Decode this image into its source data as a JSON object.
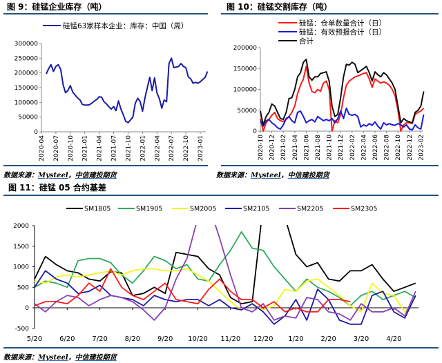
{
  "figures": {
    "fig9": {
      "title": "图 9：硅锰企业库存（吨）",
      "source_prefix": "数据来源：",
      "source_org": "Mysteel",
      "source_sep": "，",
      "source_firm": "中信建投期货"
    },
    "fig10": {
      "title": "图 10：硅锰交割库存（吨）",
      "source_prefix": "数据来源：",
      "source_org": "Mysteel",
      "source_sep": "，",
      "source_firm": "中信建投期货"
    },
    "fig11": {
      "title": "图 11：硅锰 05 合约基差",
      "source_prefix": "数据来源：",
      "source_org": "Mysteel",
      "source_sep": "，",
      "source_firm": "中信建投期货"
    }
  },
  "chart_data": [
    {
      "type": "line",
      "y_ticks": [
        "0",
        "50000",
        "100000",
        "150000",
        "200000",
        "250000",
        "300000"
      ],
      "ylim": [
        0,
        300000
      ],
      "x_tick_labels": [
        "2020-04",
        "2020-07",
        "2020-10",
        "2021-01",
        "2021-04",
        "2021-07",
        "2021-10",
        "2022-01",
        "2022-04",
        "2022-07",
        "2022-10",
        "2023-01"
      ],
      "legend": "top",
      "grid": false,
      "x": [
        "2020-05-01",
        "2020-05-16",
        "2020-06-01",
        "2020-06-16",
        "2020-07-01",
        "2020-07-16",
        "2020-08-01",
        "2020-08-16",
        "2020-09-01",
        "2020-09-16",
        "2020-10-01",
        "2020-10-16",
        "2020-11-01",
        "2020-11-16",
        "2020-12-01",
        "2020-12-16",
        "2021-01-01",
        "2021-01-16",
        "2021-02-01",
        "2021-02-16",
        "2021-03-01",
        "2021-03-16",
        "2021-04-01",
        "2021-04-16",
        "2021-05-01",
        "2021-05-16",
        "2021-06-01",
        "2021-06-16",
        "2021-07-01",
        "2021-07-16",
        "2021-08-01",
        "2021-08-16",
        "2021-09-01",
        "2021-09-16",
        "2021-10-01",
        "2021-10-16",
        "2021-11-01",
        "2021-11-16",
        "2021-12-01",
        "2021-12-16",
        "2022-01-01",
        "2022-01-16",
        "2022-02-01",
        "2022-02-16",
        "2022-03-01",
        "2022-03-16",
        "2022-04-01",
        "2022-04-16",
        "2022-05-01",
        "2022-05-16",
        "2022-06-01",
        "2022-06-16",
        "2022-07-01",
        "2022-07-16",
        "2022-08-01",
        "2022-08-16",
        "2022-09-01",
        "2022-09-16",
        "2022-10-01",
        "2022-10-16",
        "2022-11-01",
        "2022-11-16",
        "2022-12-01",
        "2022-12-16",
        "2023-01-01",
        "2023-01-16",
        "2023-02-01",
        "2023-02-16"
      ],
      "series": [
        {
          "name": "硅锰63家样本企业：库存：中国（周）",
          "color": "#1a1aa6",
          "values": [
            197000,
            215000,
            228000,
            205000,
            222000,
            228000,
            212000,
            160000,
            133000,
            140000,
            157000,
            135000,
            125000,
            115000,
            108000,
            93000,
            91000,
            91000,
            92000,
            98000,
            105000,
            110000,
            119000,
            118000,
            102000,
            95000,
            85000,
            77000,
            86000,
            72000,
            105000,
            78000,
            58000,
            36000,
            31000,
            40000,
            50000,
            97000,
            114000,
            103000,
            70000,
            115000,
            150000,
            185000,
            140000,
            183000,
            132000,
            112000,
            80000,
            108000,
            102000,
            232000,
            250000,
            218000,
            220000,
            222000,
            232000,
            222000,
            218000,
            187000,
            180000,
            165000,
            168000,
            165000,
            170000,
            178000,
            185000,
            205000
          ]
        }
      ]
    },
    {
      "type": "line",
      "y_ticks": [
        "0",
        "50000",
        "100000",
        "150000",
        "200000"
      ],
      "ylim": [
        0,
        200000
      ],
      "x_tick_labels": [
        "2020-10",
        "2020-12",
        "2021-02",
        "2021-04",
        "2021-06",
        "2021-08",
        "2021-10",
        "2021-12",
        "2022-02",
        "2022-04",
        "2022-06",
        "2022-08",
        "2022-10",
        "2022-12",
        "2023-02"
      ],
      "legend": "top",
      "grid": false,
      "x": [
        "2020-10-01",
        "2020-10-16",
        "2020-11-01",
        "2020-11-16",
        "2020-12-01",
        "2020-12-16",
        "2021-01-01",
        "2021-01-16",
        "2021-02-01",
        "2021-02-16",
        "2021-03-01",
        "2021-03-16",
        "2021-04-01",
        "2021-04-16",
        "2021-05-01",
        "2021-05-16",
        "2021-06-01",
        "2021-06-16",
        "2021-07-01",
        "2021-07-16",
        "2021-08-01",
        "2021-08-16",
        "2021-09-01",
        "2021-09-16",
        "2021-10-01",
        "2021-10-16",
        "2021-11-01",
        "2021-11-16",
        "2021-12-01",
        "2021-12-16",
        "2022-01-01",
        "2022-01-16",
        "2022-02-01",
        "2022-02-16",
        "2022-03-01",
        "2022-03-16",
        "2022-04-01",
        "2022-04-16",
        "2022-05-01",
        "2022-05-16",
        "2022-06-01",
        "2022-06-16",
        "2022-07-01",
        "2022-07-16",
        "2022-08-01",
        "2022-08-16",
        "2022-09-01",
        "2022-09-16",
        "2022-10-01",
        "2022-10-16",
        "2022-11-01",
        "2022-11-16",
        "2022-12-01",
        "2022-12-16",
        "2023-01-01",
        "2023-01-16",
        "2023-02-01",
        "2023-02-16"
      ],
      "series": [
        {
          "name": "硅锰：仓单数量合计（日）",
          "color": "#ff1a1a",
          "values": [
            30000,
            0,
            20000,
            28000,
            38000,
            45000,
            30000,
            25000,
            23000,
            28000,
            35000,
            45000,
            60000,
            90000,
            110000,
            125000,
            155000,
            115000,
            95000,
            92000,
            100000,
            95000,
            115000,
            120000,
            100000,
            0,
            25000,
            20000,
            40000,
            80000,
            110000,
            120000,
            125000,
            130000,
            132000,
            135000,
            138000,
            140000,
            125000,
            105000,
            125000,
            120000,
            115000,
            118000,
            115000,
            110000,
            100000,
            85000,
            50000,
            0,
            15000,
            20000,
            20000,
            18000,
            40000,
            45000,
            48000,
            55000
          ]
        },
        {
          "name": "硅锰：有效预报合计（日）",
          "color": "#1a1ad6",
          "values": [
            25000,
            12000,
            25000,
            28000,
            20000,
            15000,
            8000,
            5000,
            15000,
            30000,
            35000,
            25000,
            20000,
            45000,
            48000,
            35000,
            20000,
            25000,
            28000,
            22000,
            35000,
            30000,
            25000,
            28000,
            25000,
            30000,
            20000,
            30000,
            48000,
            30000,
            55000,
            40000,
            38000,
            40000,
            35000,
            10000,
            15000,
            12000,
            18000,
            14000,
            22000,
            12000,
            5000,
            20000,
            15000,
            18000,
            15000,
            14000,
            18000,
            15000,
            10000,
            15000,
            5000,
            3000,
            15000,
            8000,
            5000,
            40000
          ]
        },
        {
          "name": "合计",
          "color": "#111111",
          "values": [
            48000,
            15000,
            35000,
            45000,
            65000,
            60000,
            45000,
            30000,
            28000,
            45000,
            78000,
            80000,
            100000,
            130000,
            140000,
            165000,
            172000,
            130000,
            122000,
            130000,
            130000,
            138000,
            140000,
            142000,
            120000,
            60000,
            35000,
            40000,
            80000,
            130000,
            160000,
            158000,
            165000,
            160000,
            140000,
            145000,
            150000,
            155000,
            140000,
            120000,
            142000,
            135000,
            130000,
            140000,
            135000,
            125000,
            115000,
            100000,
            60000,
            20000,
            30000,
            25000,
            22000,
            20000,
            45000,
            50000,
            60000,
            95000
          ]
        }
      ]
    },
    {
      "type": "line",
      "y_ticks": [
        "-500",
        "0",
        "500",
        "1000",
        "1500",
        "2000"
      ],
      "ylim": [
        -500,
        2000
      ],
      "x_tick_labels": [
        "5/20",
        "6/20",
        "7/20",
        "8/20",
        "9/20",
        "10/20",
        "11/20",
        "12/20",
        "1/20",
        "2/20",
        "3/20",
        "4/20"
      ],
      "legend": "top",
      "grid": false,
      "x": [
        "5/20",
        "5/30",
        "6/10",
        "6/20",
        "6/30",
        "7/10",
        "7/20",
        "7/30",
        "8/10",
        "8/20",
        "8/30",
        "9/10",
        "9/20",
        "9/30",
        "10/10",
        "10/20",
        "10/30",
        "11/10",
        "11/20",
        "11/30",
        "12/10",
        "12/20",
        "12/30",
        "1/10",
        "1/20",
        "1/30",
        "2/10",
        "2/20",
        "2/28",
        "3/10",
        "3/20",
        "3/30",
        "4/10",
        "4/20",
        "4/30",
        "5/10"
      ],
      "series": [
        {
          "name": "SM1805",
          "color": "#000000",
          "values": [
            700,
            1250,
            1050,
            900,
            850,
            700,
            650,
            880,
            850,
            300,
            350,
            500,
            350,
            1350,
            1300,
            1250,
            950,
            800,
            250,
            100,
            150,
            2500,
            2200,
            2200,
            1300,
            1000,
            1100,
            700,
            650,
            900,
            900,
            1050,
            700,
            400,
            500,
            600
          ]
        },
        {
          "name": "SM1905",
          "color": "#2eaa5c",
          "values": [
            500,
            650,
            600,
            500,
            1150,
            1200,
            1200,
            1100,
            800,
            600,
            900,
            1250,
            1150,
            950,
            1050,
            700,
            650,
            1050,
            1400,
            1850,
            1450,
            1400,
            1000,
            700,
            400,
            700,
            500,
            400,
            250,
            50,
            300,
            400,
            200,
            300,
            400,
            250
          ]
        },
        {
          "name": "SM2005",
          "color": "#f5f51a",
          "values": [
            650,
            600,
            750,
            800,
            750,
            800,
            850,
            900,
            800,
            900,
            950,
            950,
            900,
            900,
            950,
            800,
            650,
            400,
            150,
            -50,
            100,
            -50,
            50,
            450,
            400,
            650,
            700,
            500,
            300,
            50,
            -100,
            600,
            350,
            300,
            -100,
            250
          ]
        },
        {
          "name": "SM2105",
          "color": "#1a1aa6",
          "values": [
            500,
            900,
            700,
            600,
            350,
            400,
            550,
            300,
            250,
            200,
            50,
            300,
            200,
            150,
            200,
            200,
            50,
            200,
            0,
            -50,
            100,
            -100,
            -400,
            -200,
            200,
            -300,
            450,
            200,
            -300,
            -400,
            -400,
            300,
            400,
            -100,
            -250,
            300
          ]
        },
        {
          "name": "SM2205",
          "color": "#8a3fb5",
          "values": [
            100,
            -100,
            150,
            300,
            250,
            50,
            200,
            300,
            250,
            150,
            -50,
            -300,
            0,
            700,
            1200,
            2200,
            2500,
            1700,
            800,
            0,
            -100,
            100,
            -300,
            -200,
            -250,
            250,
            200,
            -100,
            -150,
            -300,
            100,
            -100,
            -100,
            0,
            -200,
            400
          ]
        },
        {
          "name": "SM2305",
          "color": "#ff1a1a",
          "values": [
            50,
            150,
            150,
            100,
            300,
            600,
            400,
            950,
            500,
            300,
            200,
            400,
            600,
            200,
            150,
            100,
            450,
            700,
            400,
            200,
            200,
            0,
            150,
            -100,
            0,
            -100,
            -100,
            200,
            200,
            150,
            null,
            null,
            null,
            null,
            null,
            null
          ]
        }
      ]
    }
  ]
}
